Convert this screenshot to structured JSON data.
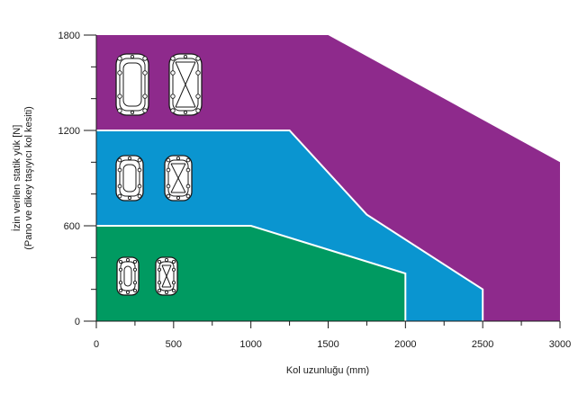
{
  "chart_data": {
    "type": "area",
    "xlabel": "Kol uzunluğu (mm)",
    "ylabel_lines": [
      "İzin verilen statik yük [N]",
      "(Pano ve dikey taşıyıcı kol kesiti)"
    ],
    "xlim": [
      0,
      3000
    ],
    "ylim": [
      0,
      1800
    ],
    "x_ticks": [
      0,
      500,
      1000,
      1500,
      2000,
      2500,
      3000
    ],
    "y_ticks": [
      0,
      600,
      1200,
      1800
    ],
    "x_minor_step": 250,
    "y_minor_step": 200,
    "grid": false,
    "series": [
      {
        "color": "#8e2a8c",
        "profile_size": "large",
        "points": [
          [
            0,
            1800
          ],
          [
            1500,
            1800
          ],
          [
            3000,
            1000
          ],
          [
            3000,
            0
          ],
          [
            0,
            0
          ]
        ]
      },
      {
        "color": "#0a95d0",
        "profile_size": "medium",
        "points": [
          [
            0,
            1200
          ],
          [
            1250,
            1200
          ],
          [
            1750,
            670
          ],
          [
            2500,
            200
          ],
          [
            2500,
            0
          ],
          [
            0,
            0
          ]
        ]
      },
      {
        "color": "#009a61",
        "profile_size": "small",
        "points": [
          [
            0,
            600
          ],
          [
            1000,
            600
          ],
          [
            1500,
            450
          ],
          [
            2000,
            300
          ],
          [
            2000,
            0
          ],
          [
            0,
            0
          ]
        ]
      }
    ]
  }
}
